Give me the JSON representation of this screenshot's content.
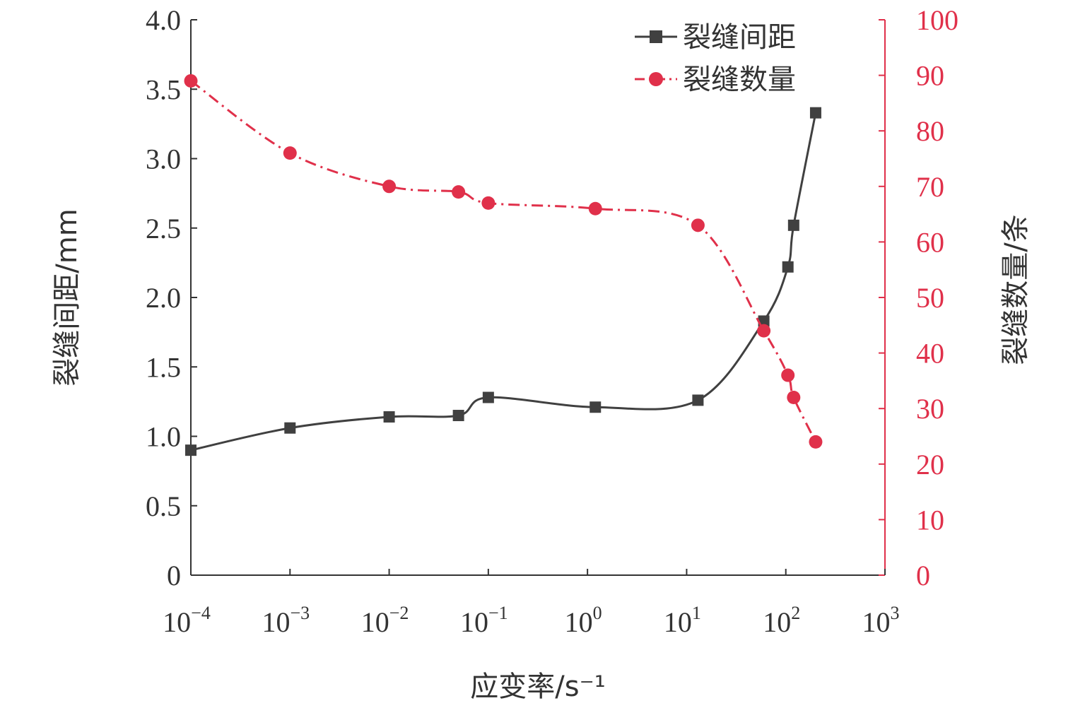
{
  "chart_data": {
    "type": "line",
    "x_scale": "log",
    "x": [
      0.0001,
      0.001,
      0.01,
      0.05,
      0.1,
      1.2,
      13,
      60,
      105,
      120,
      200
    ],
    "series": [
      {
        "name": "裂缝间距",
        "axis": "left",
        "style": "solid",
        "marker": "square",
        "color": "#404040",
        "values": [
          0.9,
          1.06,
          1.14,
          1.15,
          1.28,
          1.21,
          1.26,
          1.83,
          2.22,
          2.52,
          3.33
        ]
      },
      {
        "name": "裂缝数量",
        "axis": "right",
        "style": "dash-dot",
        "marker": "circle",
        "color": "#e0304a",
        "values": [
          89,
          76,
          70,
          69,
          67,
          66,
          63,
          44,
          36,
          32,
          24
        ]
      }
    ],
    "xlabel": "应变率/s⁻¹",
    "ylabel_left": "裂缝间距/mm",
    "ylabel_right": "裂缝数量/条",
    "xlim": [
      0.0001,
      1000
    ],
    "ylim_left": [
      0,
      4.0
    ],
    "ylim_right": [
      0,
      100
    ],
    "x_ticks": [
      {
        "base": "10",
        "exp": "−4"
      },
      {
        "base": "10",
        "exp": "−3"
      },
      {
        "base": "10",
        "exp": "−2"
      },
      {
        "base": "10",
        "exp": "−1"
      },
      {
        "base": "10",
        "exp": "0"
      },
      {
        "base": "10",
        "exp": "1"
      },
      {
        "base": "10",
        "exp": "2"
      },
      {
        "base": "10",
        "exp": "3"
      }
    ],
    "y_left_ticks": [
      "0",
      "0.5",
      "1.0",
      "1.5",
      "2.0",
      "2.5",
      "3.0",
      "3.5",
      "4.0"
    ],
    "y_right_ticks": [
      "0",
      "10",
      "20",
      "30",
      "40",
      "50",
      "60",
      "70",
      "80",
      "90",
      "100"
    ],
    "legend_position": "top-right",
    "grid": false,
    "colors": {
      "left": "#404040",
      "right": "#e0304a",
      "axis": "#333333"
    }
  }
}
